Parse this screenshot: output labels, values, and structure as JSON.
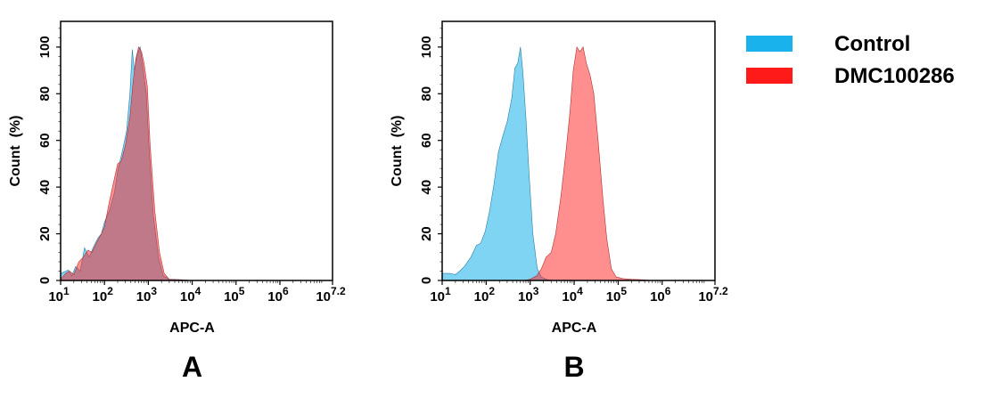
{
  "legend": {
    "placement": "right",
    "entries": [
      {
        "name": "Control",
        "color": "#1ab2ec"
      },
      {
        "name": "DMC100286",
        "color": "#ff1a1a"
      }
    ]
  },
  "chart_data": [
    {
      "type": "area",
      "panel_label": "A",
      "xlabel": "APC-A",
      "ylabel": "Count  (%)",
      "xscale": "log",
      "xlim": [
        10,
        15848932
      ],
      "ylim": [
        0,
        111
      ],
      "grid": false,
      "yticks": [
        0,
        20,
        40,
        60,
        80,
        100
      ],
      "xticks": [
        {
          "base": "10",
          "exp": "1"
        },
        {
          "base": "10",
          "exp": "2"
        },
        {
          "base": "10",
          "exp": "3"
        },
        {
          "base": "10",
          "exp": "4"
        },
        {
          "base": "10",
          "exp": "5"
        },
        {
          "base": "10",
          "exp": "6"
        },
        {
          "base": "10",
          "exp": "7.2"
        }
      ],
      "series": [
        {
          "name": "Control",
          "fill": "#00a8e8",
          "points": [
            [
              10,
              3
            ],
            [
              15,
              4.5
            ],
            [
              18,
              2
            ],
            [
              22,
              6
            ],
            [
              28,
              4
            ],
            [
              35,
              14
            ],
            [
              45,
              10
            ],
            [
              55,
              14
            ],
            [
              70,
              18
            ],
            [
              85,
              20
            ],
            [
              100,
              25
            ],
            [
              130,
              30
            ],
            [
              170,
              38
            ],
            [
              200,
              47
            ],
            [
              260,
              56
            ],
            [
              320,
              64
            ],
            [
              380,
              80
            ],
            [
              430,
              99
            ],
            [
              480,
              90
            ],
            [
              560,
              97
            ],
            [
              650,
              100
            ],
            [
              760,
              91
            ],
            [
              900,
              80
            ],
            [
              1050,
              55
            ],
            [
              1300,
              28
            ],
            [
              1700,
              10
            ],
            [
              2200,
              2
            ],
            [
              3000,
              0.5
            ],
            [
              6000,
              0.3
            ],
            [
              10000,
              0
            ]
          ]
        },
        {
          "name": "DMC100286",
          "fill": "#ff2020",
          "points": [
            [
              10,
              0.5
            ],
            [
              13,
              3
            ],
            [
              16,
              4
            ],
            [
              20,
              2.5
            ],
            [
              26,
              8
            ],
            [
              33,
              10
            ],
            [
              42,
              13
            ],
            [
              52,
              12
            ],
            [
              65,
              16
            ],
            [
              85,
              20
            ],
            [
              100,
              23
            ],
            [
              130,
              34
            ],
            [
              170,
              44
            ],
            [
              200,
              50
            ],
            [
              240,
              51
            ],
            [
              300,
              58
            ],
            [
              380,
              70
            ],
            [
              450,
              85
            ],
            [
              520,
              95
            ],
            [
              600,
              100
            ],
            [
              700,
              98
            ],
            [
              800,
              93
            ],
            [
              950,
              83
            ],
            [
              1100,
              58
            ],
            [
              1400,
              30
            ],
            [
              1800,
              12
            ],
            [
              2300,
              3
            ],
            [
              3000,
              0.5
            ],
            [
              5000,
              0.3
            ],
            [
              10000,
              0
            ]
          ]
        }
      ]
    },
    {
      "type": "area",
      "panel_label": "B",
      "xlabel": "APC-A",
      "ylabel": "Count  (%)",
      "xscale": "log",
      "xlim": [
        10,
        15848932
      ],
      "ylim": [
        0,
        111
      ],
      "grid": false,
      "yticks": [
        0,
        20,
        40,
        60,
        80,
        100
      ],
      "xticks": [
        {
          "base": "10",
          "exp": "1"
        },
        {
          "base": "10",
          "exp": "2"
        },
        {
          "base": "10",
          "exp": "3"
        },
        {
          "base": "10",
          "exp": "4"
        },
        {
          "base": "10",
          "exp": "5"
        },
        {
          "base": "10",
          "exp": "6"
        },
        {
          "base": "10",
          "exp": "7.2"
        }
      ],
      "series": [
        {
          "name": "Control",
          "fill": "#00a8e8",
          "points": [
            [
              10,
              3
            ],
            [
              15,
              3
            ],
            [
              20,
              2.5
            ],
            [
              25,
              4
            ],
            [
              32,
              6
            ],
            [
              45,
              10
            ],
            [
              60,
              15
            ],
            [
              75,
              16
            ],
            [
              95,
              21
            ],
            [
              120,
              30
            ],
            [
              150,
              41
            ],
            [
              190,
              55
            ],
            [
              240,
              62
            ],
            [
              300,
              68
            ],
            [
              380,
              78
            ],
            [
              450,
              91
            ],
            [
              520,
              93
            ],
            [
              600,
              100
            ],
            [
              680,
              90
            ],
            [
              800,
              70
            ],
            [
              950,
              45
            ],
            [
              1150,
              20
            ],
            [
              1450,
              5
            ],
            [
              1800,
              1.5
            ],
            [
              2500,
              0.3
            ],
            [
              3500,
              0
            ]
          ]
        },
        {
          "name": "DMC100286",
          "fill": "#ff2020",
          "points": [
            [
              700,
              0
            ],
            [
              1000,
              0.5
            ],
            [
              1400,
              2
            ],
            [
              1800,
              5
            ],
            [
              2300,
              10
            ],
            [
              3000,
              12
            ],
            [
              3800,
              20
            ],
            [
              5000,
              36
            ],
            [
              6500,
              55
            ],
            [
              8000,
              72
            ],
            [
              9500,
              90
            ],
            [
              11500,
              100
            ],
            [
              13500,
              98
            ],
            [
              16000,
              100
            ],
            [
              19000,
              93
            ],
            [
              23000,
              88
            ],
            [
              28000,
              80
            ],
            [
              35000,
              60
            ],
            [
              45000,
              35
            ],
            [
              55000,
              18
            ],
            [
              70000,
              5
            ],
            [
              90000,
              1.5
            ],
            [
              130000,
              0.8
            ],
            [
              200000,
              0.5
            ],
            [
              350000,
              0.3
            ],
            [
              600000,
              0
            ]
          ]
        }
      ]
    }
  ]
}
